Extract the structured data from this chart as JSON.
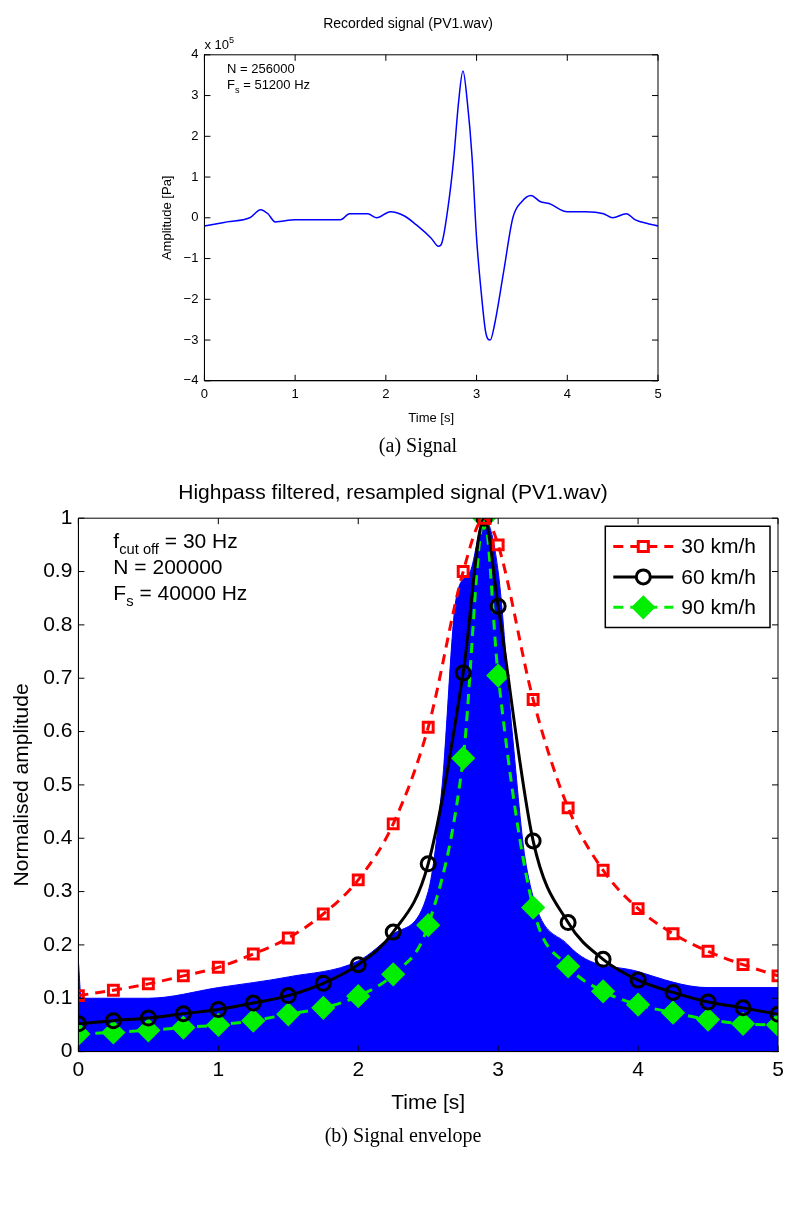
{
  "chart_data": [
    {
      "type": "line",
      "title": "Recorded signal (PV1.wav)",
      "xlabel": "Time [s]",
      "ylabel": "Amplitude [Pa]",
      "annotations": [
        "x 10$^{5}$",
        "N = 256000",
        "F$_{s}$ = 51200 Hz",
        "(a) Signal"
      ],
      "xlim": [
        0,
        5
      ],
      "xticks": [
        0,
        1,
        2,
        3,
        4,
        5
      ],
      "ylim": [
        -4,
        4
      ],
      "yticks": [
        -4,
        -3,
        -2,
        -1,
        0,
        1,
        2,
        3,
        4
      ],
      "grid": false,
      "series": [
        {
          "color": "#0000ff",
          "x": [
            0,
            0.25,
            0.5,
            0.62,
            0.7,
            0.78,
            1.0,
            1.25,
            1.5,
            1.6,
            1.8,
            1.9,
            2.05,
            2.2,
            2.35,
            2.5,
            2.58,
            2.62,
            2.7,
            2.75,
            2.8,
            2.85,
            2.9,
            2.95,
            3.0,
            3.05,
            3.1,
            3.15,
            3.2,
            3.3,
            3.4,
            3.5,
            3.6,
            3.7,
            3.8,
            4.0,
            4.2,
            4.4,
            4.5,
            4.65,
            4.75,
            4.9,
            5.0
          ],
          "values": [
            -0.2,
            -0.1,
            0.0,
            0.2,
            0.1,
            -0.1,
            -0.05,
            -0.05,
            -0.05,
            0.1,
            0.1,
            0.0,
            0.15,
            0.05,
            -0.2,
            -0.5,
            -0.7,
            -0.6,
            0.5,
            1.5,
            2.8,
            3.6,
            2.8,
            1.5,
            -0.5,
            -1.8,
            -2.8,
            -3.0,
            -2.6,
            -1.3,
            0.0,
            0.4,
            0.55,
            0.4,
            0.35,
            0.15,
            0.15,
            0.1,
            0.0,
            0.1,
            -0.05,
            -0.15,
            -0.2
          ]
        }
      ]
    },
    {
      "type": "line",
      "title": "Highpass filtered, resampled signal (PV1.wav)",
      "xlabel": "Time [s]",
      "ylabel": "Normalised amplitude",
      "annotations": [
        "f$_{cut off}$ = 30 Hz",
        "N = 200000",
        "F$_{s}$ = 40000 Hz",
        "(b) Signal envelope"
      ],
      "xlim": [
        0,
        5
      ],
      "xticks": [
        0,
        1,
        2,
        3,
        4,
        5
      ],
      "ylim": [
        0,
        1
      ],
      "yticks": [
        0,
        0.1,
        0.2,
        0.3,
        0.4,
        0.5,
        0.6,
        0.7,
        0.8,
        0.9,
        1
      ],
      "grid": false,
      "legend": "top right",
      "series": [
        {
          "type": "area",
          "color": "#0000ff",
          "x": [
            0,
            0.02,
            0.1,
            0.5,
            1,
            1.5,
            2,
            2.25,
            2.5,
            2.6,
            2.7,
            2.8,
            2.9,
            3.0,
            3.1,
            3.2,
            3.5,
            4,
            4.5,
            5
          ],
          "values": [
            0.17,
            0.1,
            0.1,
            0.1,
            0.12,
            0.14,
            0.17,
            0.22,
            0.3,
            0.5,
            0.85,
            0.9,
            1.0,
            0.9,
            0.6,
            0.35,
            0.2,
            0.15,
            0.12,
            0.12
          ]
        },
        {
          "name": "30 km/h",
          "color": "#ff0000",
          "marker": "square",
          "line_style": "dashed",
          "x": [
            0,
            0.25,
            0.5,
            0.75,
            1,
            1.25,
            1.5,
            1.75,
            2,
            2.25,
            2.5,
            2.75,
            2.9,
            3,
            3.25,
            3.5,
            3.75,
            4,
            4.25,
            4.5,
            4.75,
            5
          ],
          "values": [
            0.105,
            0.115,
            0.127,
            0.142,
            0.158,
            0.183,
            0.213,
            0.258,
            0.322,
            0.427,
            0.608,
            0.9,
            1.0,
            0.95,
            0.66,
            0.457,
            0.34,
            0.268,
            0.221,
            0.188,
            0.163,
            0.142
          ]
        },
        {
          "name": "60 km/h",
          "color": "#000000",
          "marker": "circle",
          "line_style": "solid",
          "x": [
            0,
            0.25,
            0.5,
            0.75,
            1,
            1.25,
            1.5,
            1.75,
            2,
            2.25,
            2.5,
            2.75,
            2.9,
            3,
            3.25,
            3.5,
            3.75,
            4,
            4.25,
            4.5,
            4.75,
            5
          ],
          "values": [
            0.052,
            0.058,
            0.063,
            0.071,
            0.079,
            0.091,
            0.105,
            0.128,
            0.163,
            0.224,
            0.352,
            0.71,
            1.0,
            0.835,
            0.395,
            0.242,
            0.173,
            0.134,
            0.111,
            0.093,
            0.082,
            0.07
          ]
        },
        {
          "name": "90 km/h",
          "color": "#00ee00",
          "marker": "diamond",
          "line_style": "dashed",
          "x": [
            0,
            0.25,
            0.5,
            0.75,
            1,
            1.25,
            1.5,
            1.75,
            2,
            2.25,
            2.5,
            2.75,
            2.9,
            3,
            3.25,
            3.5,
            3.75,
            4,
            4.25,
            4.5,
            4.75,
            5
          ],
          "values": [
            0.033,
            0.036,
            0.04,
            0.045,
            0.05,
            0.058,
            0.07,
            0.082,
            0.104,
            0.145,
            0.237,
            0.55,
            1.0,
            0.705,
            0.27,
            0.16,
            0.113,
            0.088,
            0.073,
            0.06,
            0.052,
            0.05
          ]
        }
      ]
    }
  ]
}
